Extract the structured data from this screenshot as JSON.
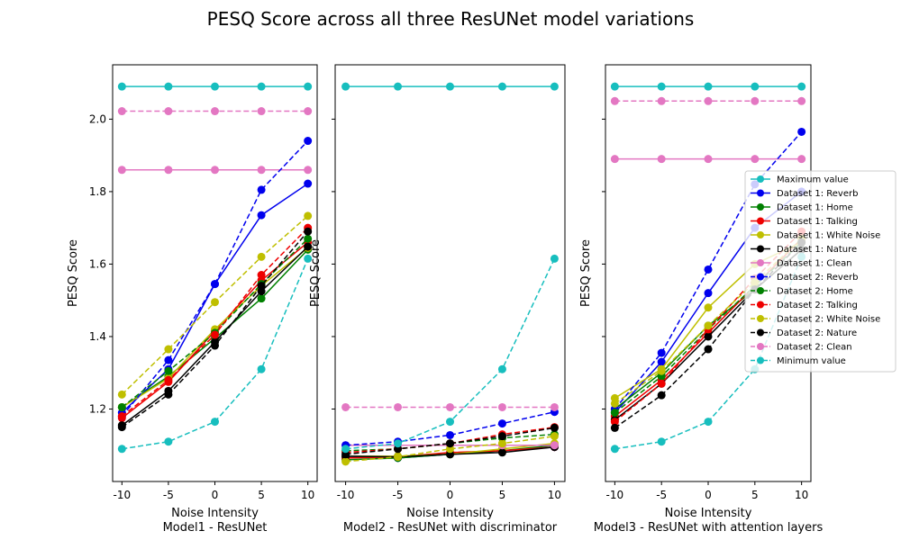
{
  "chart_data": {
    "title": "PESQ Score across all three ResUNet model variations",
    "type": "line",
    "x": [
      -10,
      -5,
      0,
      5,
      10
    ],
    "x_ticks": [
      "-10",
      "-5",
      "0",
      "5",
      "10"
    ],
    "ylim": [
      1.0,
      2.15
    ],
    "y_ticks": [
      "1.2",
      "1.4",
      "1.6",
      "1.8",
      "2.0"
    ],
    "legend": [
      {
        "name": "Maximum value",
        "color": "#17bebe",
        "dash": false
      },
      {
        "name": "Dataset 1: Reverb",
        "color": "#0000ee",
        "dash": false
      },
      {
        "name": "Dataset 1: Home",
        "color": "#008000",
        "dash": false
      },
      {
        "name": "Dataset 1: Talking",
        "color": "#ee0000",
        "dash": false
      },
      {
        "name": "Dataset 1: White Noise",
        "color": "#bfbf00",
        "dash": false
      },
      {
        "name": "Dataset 1: Nature",
        "color": "#000000",
        "dash": false
      },
      {
        "name": "Dataset 1: Clean",
        "color": "#e377c2",
        "dash": false
      },
      {
        "name": "Dataset 2: Reverb",
        "color": "#0000ee",
        "dash": true
      },
      {
        "name": "Dataset 2: Home",
        "color": "#008000",
        "dash": true
      },
      {
        "name": "Dataset 2: Talking",
        "color": "#ee0000",
        "dash": true
      },
      {
        "name": "Dataset 2: White Noise",
        "color": "#bfbf00",
        "dash": true
      },
      {
        "name": "Dataset 2: Nature",
        "color": "#000000",
        "dash": true
      },
      {
        "name": "Dataset 2: Clean",
        "color": "#e377c2",
        "dash": true
      },
      {
        "name": "Minimum value",
        "color": "#17bebe",
        "dash": true
      }
    ],
    "panels": [
      {
        "xlabel": "Noise Intensity",
        "subtitle": "Model1 - ResUNet",
        "ylabel": "PESQ Score",
        "series": [
          {
            "values": [
              2.09,
              2.09,
              2.09,
              2.09,
              2.09
            ]
          },
          {
            "values": [
              1.19,
              1.31,
              1.545,
              1.735,
              1.822
            ]
          },
          {
            "values": [
              1.205,
              1.29,
              1.395,
              1.505,
              1.64
            ]
          },
          {
            "values": [
              1.175,
              1.275,
              1.415,
              1.555,
              1.66
            ]
          },
          {
            "values": [
              1.205,
              1.285,
              1.42,
              1.54,
              1.645
            ]
          },
          {
            "values": [
              1.155,
              1.25,
              1.385,
              1.525,
              1.648
            ]
          },
          {
            "values": [
              1.86,
              1.86,
              1.86,
              1.86,
              1.86
            ]
          },
          {
            "values": [
              1.18,
              1.335,
              1.545,
              1.805,
              1.94
            ]
          },
          {
            "values": [
              1.205,
              1.305,
              1.41,
              1.545,
              1.67
            ]
          },
          {
            "values": [
              1.18,
              1.28,
              1.405,
              1.57,
              1.7
            ]
          },
          {
            "values": [
              1.24,
              1.365,
              1.495,
              1.62,
              1.733
            ]
          },
          {
            "values": [
              1.15,
              1.24,
              1.375,
              1.54,
              1.69
            ]
          },
          {
            "values": [
              2.022,
              2.022,
              2.022,
              2.022,
              2.022
            ]
          },
          {
            "values": [
              1.09,
              1.11,
              1.165,
              1.31,
              1.615
            ]
          }
        ]
      },
      {
        "xlabel": "Noise Intensity",
        "subtitle": "Model2 - ResUNet with discriminator",
        "ylabel": "PESQ Score",
        "series": [
          {
            "values": [
              2.09,
              2.09,
              2.09,
              2.09,
              2.09
            ]
          },
          {
            "values": [
              1.07,
              1.065,
              1.075,
              1.085,
              1.095
            ]
          },
          {
            "values": [
              1.06,
              1.065,
              1.075,
              1.085,
              1.1
            ]
          },
          {
            "values": [
              1.065,
              1.068,
              1.08,
              1.085,
              1.095
            ]
          },
          {
            "values": [
              1.07,
              1.07,
              1.075,
              1.09,
              1.105
            ]
          },
          {
            "values": [
              1.07,
              1.068,
              1.075,
              1.08,
              1.095
            ]
          },
          {
            "values": [
              1.1,
              1.1,
              1.1,
              1.1,
              1.1
            ]
          },
          {
            "values": [
              1.1,
              1.11,
              1.128,
              1.16,
              1.192
            ]
          },
          {
            "values": [
              1.085,
              1.09,
              1.105,
              1.12,
              1.13
            ]
          },
          {
            "values": [
              1.08,
              1.09,
              1.105,
              1.13,
              1.15
            ]
          },
          {
            "values": [
              1.055,
              1.068,
              1.09,
              1.105,
              1.125
            ]
          },
          {
            "values": [
              1.075,
              1.09,
              1.105,
              1.125,
              1.148
            ]
          },
          {
            "values": [
              1.205,
              1.205,
              1.205,
              1.205,
              1.205
            ]
          },
          {
            "values": [
              1.09,
              1.105,
              1.165,
              1.31,
              1.615
            ]
          }
        ]
      },
      {
        "xlabel": "Noise Intensity",
        "subtitle": "Model3 - ResUNet with attention layers",
        "ylabel": "PESQ Score",
        "series": [
          {
            "values": [
              2.09,
              2.09,
              2.09,
              2.09,
              2.09
            ]
          },
          {
            "values": [
              1.19,
              1.33,
              1.52,
              1.7,
              1.8
            ]
          },
          {
            "values": [
              1.2,
              1.3,
              1.43,
              1.53,
              1.64
            ]
          },
          {
            "values": [
              1.18,
              1.28,
              1.41,
              1.54,
              1.67
            ]
          },
          {
            "values": [
              1.23,
              1.31,
              1.48,
              1.6,
              1.66
            ]
          },
          {
            "values": [
              1.17,
              1.27,
              1.4,
              1.53,
              1.64
            ]
          },
          {
            "values": [
              1.89,
              1.89,
              1.89,
              1.89,
              1.89
            ]
          },
          {
            "values": [
              1.2,
              1.355,
              1.585,
              1.82,
              1.965
            ]
          },
          {
            "values": [
              1.19,
              1.29,
              1.42,
              1.54,
              1.66
            ]
          },
          {
            "values": [
              1.165,
              1.27,
              1.42,
              1.56,
              1.69
            ]
          },
          {
            "values": [
              1.215,
              1.305,
              1.43,
              1.55,
              1.67
            ]
          },
          {
            "values": [
              1.148,
              1.238,
              1.365,
              1.53,
              1.66
            ]
          },
          {
            "values": [
              2.05,
              2.05,
              2.05,
              2.05,
              2.05
            ]
          },
          {
            "values": [
              1.09,
              1.11,
              1.165,
              1.31,
              1.62
            ]
          }
        ]
      }
    ]
  }
}
